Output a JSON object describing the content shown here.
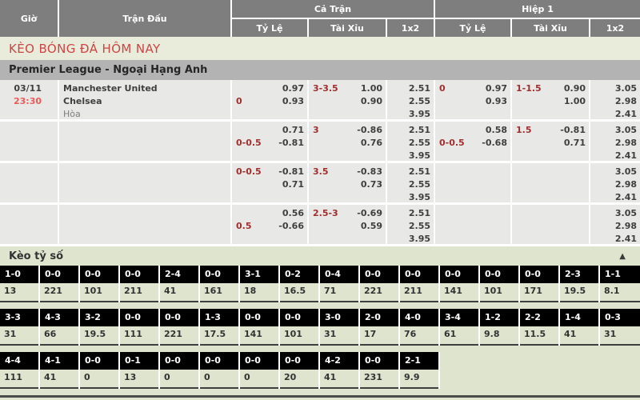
{
  "table_header": {
    "time": "Giờ",
    "match": "Trận Đấu",
    "full_match": "Cả Trận",
    "first_half": "Hiệp 1",
    "odds": "Tỷ Lệ",
    "over_under": "Tài Xỉu",
    "one_x_two": "1x2"
  },
  "page_title": "KÈO BÓNG ĐÁ HÔM NAY",
  "league": "Premier League - Ngoại Hạng Anh",
  "match": {
    "date": "03/11",
    "time": "23:30",
    "home": "Manchester United",
    "away": "Chelsea",
    "draw": "Hòa"
  },
  "odds_rows": [
    {
      "ft": {
        "hdp": {
          "l1": [
            "",
            "0.97"
          ],
          "l2": [
            "0",
            "0.93"
          ]
        },
        "ou": {
          "l1": [
            "3-3.5",
            "1.00"
          ],
          "l2": [
            "",
            "0.90"
          ]
        },
        "x12": [
          "2.51",
          "2.55",
          "3.95"
        ]
      },
      "h1": {
        "hdp": {
          "l1": [
            "0",
            "0.97"
          ],
          "l2": [
            "",
            "0.93"
          ]
        },
        "ou": {
          "l1": [
            "1-1.5",
            "0.90"
          ],
          "l2": [
            "",
            "1.00"
          ]
        },
        "x12": [
          "3.05",
          "2.98",
          "2.41"
        ]
      }
    },
    {
      "ft": {
        "hdp": {
          "l1": [
            "",
            "0.71"
          ],
          "l2": [
            "0-0.5",
            "-0.81"
          ]
        },
        "ou": {
          "l1": [
            "3",
            "-0.86"
          ],
          "l2": [
            "",
            "0.76"
          ]
        },
        "x12": [
          "2.51",
          "2.55",
          "3.95"
        ]
      },
      "h1": {
        "hdp": {
          "l1": [
            "",
            "0.58"
          ],
          "l2": [
            "0-0.5",
            "-0.68"
          ]
        },
        "ou": {
          "l1": [
            "1.5",
            "-0.81"
          ],
          "l2": [
            "",
            "0.71"
          ]
        },
        "x12": [
          "3.05",
          "2.98",
          "2.41"
        ]
      }
    },
    {
      "ft": {
        "hdp": {
          "l1": [
            "0-0.5",
            "-0.81"
          ],
          "l2": [
            "",
            "0.71"
          ]
        },
        "ou": {
          "l1": [
            "3.5",
            "-0.83"
          ],
          "l2": [
            "",
            "0.73"
          ]
        },
        "x12": [
          "2.51",
          "2.55",
          "3.95"
        ]
      },
      "h1": {
        "hdp": null,
        "ou": null,
        "x12": [
          "3.05",
          "2.98",
          "2.41"
        ]
      }
    },
    {
      "ft": {
        "hdp": {
          "l1": [
            "",
            "0.56"
          ],
          "l2": [
            "0.5",
            "-0.66"
          ]
        },
        "ou": {
          "l1": [
            "2.5-3",
            "-0.69"
          ],
          "l2": [
            "",
            "0.59"
          ]
        },
        "x12": [
          "2.51",
          "2.55",
          "3.95"
        ]
      },
      "h1": {
        "hdp": null,
        "ou": null,
        "x12": [
          "3.05",
          "2.98",
          "2.41"
        ]
      }
    }
  ],
  "score_section": {
    "title": "Kèo tỷ số",
    "collapse_icon": "▲",
    "rows": [
      {
        "cells": [
          {
            "s": "1-0",
            "o": "13"
          },
          {
            "s": "0-0",
            "o": "221"
          },
          {
            "s": "0-0",
            "o": "101"
          },
          {
            "s": "0-0",
            "o": "211"
          },
          {
            "s": "2-4",
            "o": "41"
          },
          {
            "s": "0-0",
            "o": "161"
          },
          {
            "s": "3-1",
            "o": "18"
          },
          {
            "s": "0-2",
            "o": "16.5"
          },
          {
            "s": "0-4",
            "o": "71"
          },
          {
            "s": "0-0",
            "o": "221"
          },
          {
            "s": "0-0",
            "o": "211"
          },
          {
            "s": "0-0",
            "o": "141"
          },
          {
            "s": "0-0",
            "o": "101"
          },
          {
            "s": "0-0",
            "o": "171"
          },
          {
            "s": "2-3",
            "o": "19.5"
          },
          {
            "s": "1-1",
            "o": "8.1"
          }
        ]
      },
      {
        "cells": [
          {
            "s": "3-3",
            "o": "31"
          },
          {
            "s": "4-3",
            "o": "66"
          },
          {
            "s": "3-2",
            "o": "19.5"
          },
          {
            "s": "0-0",
            "o": "111"
          },
          {
            "s": "0-0",
            "o": "221"
          },
          {
            "s": "1-3",
            "o": "17.5"
          },
          {
            "s": "0-0",
            "o": "141"
          },
          {
            "s": "0-0",
            "o": "101"
          },
          {
            "s": "3-0",
            "o": "31"
          },
          {
            "s": "2-0",
            "o": "17"
          },
          {
            "s": "4-0",
            "o": "76"
          },
          {
            "s": "3-4",
            "o": "61"
          },
          {
            "s": "1-2",
            "o": "9.8"
          },
          {
            "s": "2-2",
            "o": "11.5"
          },
          {
            "s": "1-4",
            "o": "41"
          },
          {
            "s": "0-3",
            "o": "31"
          }
        ]
      },
      {
        "cells": [
          {
            "s": "4-4",
            "o": "111"
          },
          {
            "s": "4-1",
            "o": "41"
          },
          {
            "s": "0-0",
            "o": "0"
          },
          {
            "s": "0-1",
            "o": "13"
          },
          {
            "s": "0-0",
            "o": "0"
          },
          {
            "s": "0-0",
            "o": "0"
          },
          {
            "s": "0-0",
            "o": "0"
          },
          {
            "s": "0-0",
            "o": "20"
          },
          {
            "s": "4-2",
            "o": "41"
          },
          {
            "s": "0-0",
            "o": "231"
          },
          {
            "s": "2-1",
            "o": "9.9"
          }
        ]
      }
    ]
  },
  "colors": {
    "title_red": "#cc4545",
    "handicap_red": "#9e2f2f",
    "time_red": "#ee5a5a",
    "header_gray": "#7e7e7e",
    "league_gray": "#b3b3b3",
    "row_bg": "#e8e8e6",
    "section_green": "#dfe4cf",
    "score_cell_black": "#000000"
  }
}
